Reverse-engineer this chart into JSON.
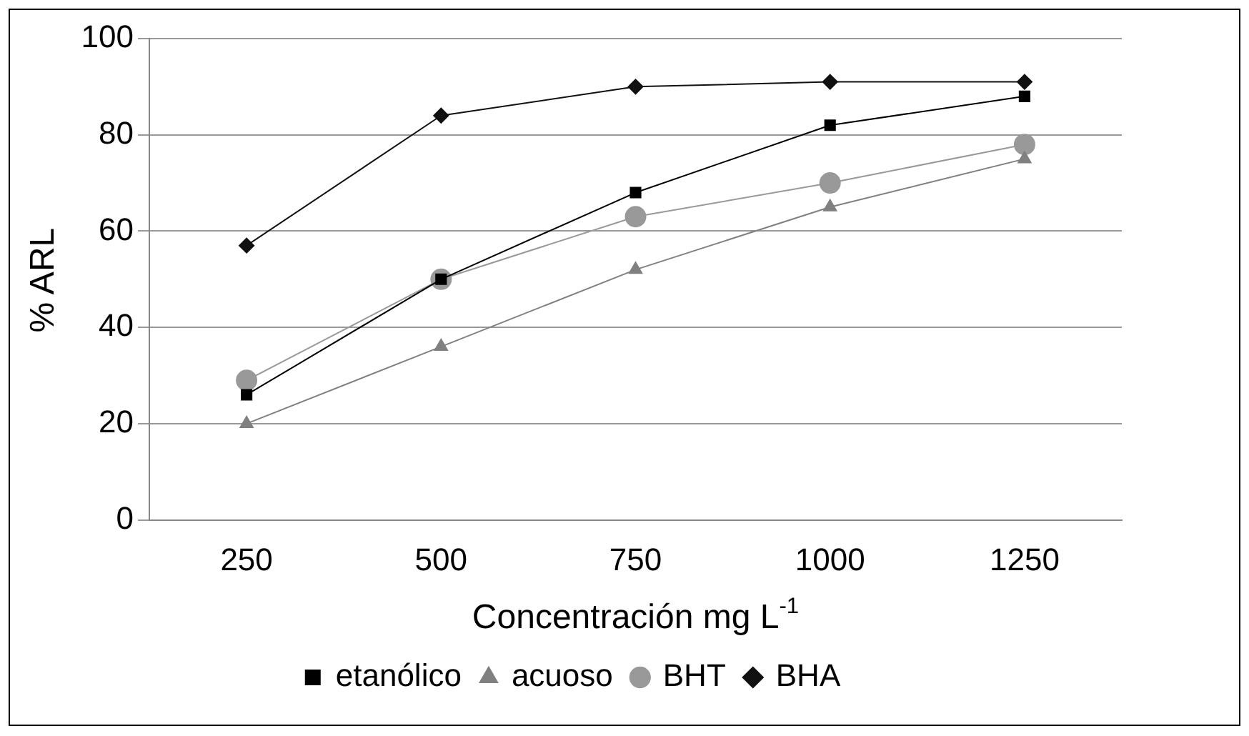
{
  "chart_data": {
    "type": "line",
    "xlabel": "Concentración mg L$^{-1}$",
    "ylabel": "% ARL",
    "categories": [
      "250",
      "500",
      "750",
      "1000",
      "1250"
    ],
    "ylim": [
      0,
      100
    ],
    "yticks": [
      0,
      20,
      40,
      60,
      80,
      100
    ],
    "grid": "y",
    "legend": "bottom",
    "series": [
      {
        "name": "etanólico",
        "color": "#000000",
        "marker": "square",
        "values": [
          26,
          50,
          68,
          82,
          88
        ]
      },
      {
        "name": "acuoso",
        "color": "#808080",
        "marker": "triangle",
        "values": [
          20,
          36,
          52,
          65,
          75
        ]
      },
      {
        "name": "BHT",
        "color": "#999999",
        "marker": "circle",
        "values": [
          29,
          50,
          63,
          70,
          78
        ]
      },
      {
        "name": "BHA",
        "color": "#111111",
        "marker": "diamond",
        "values": [
          57,
          84,
          90,
          91,
          91
        ]
      }
    ]
  }
}
